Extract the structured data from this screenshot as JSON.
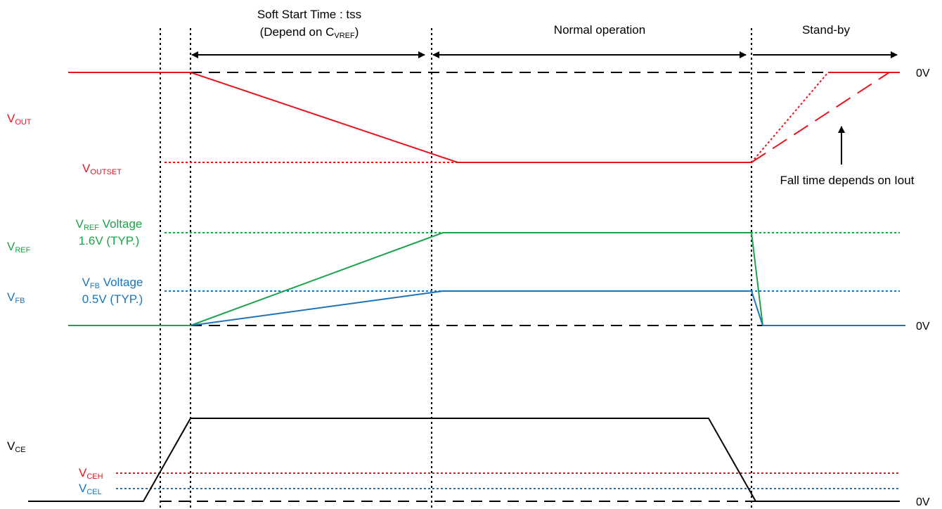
{
  "colors": {
    "vout": "#e8141c",
    "vref": "#1aa34a",
    "vfb": "#1b74bb",
    "vce": "#000000",
    "reference": "#000000"
  },
  "phases": {
    "soft_start": {
      "line1": "Soft Start Time : tss",
      "line2_prefix": "(Depend on C",
      "line2_sub": "VREF",
      "line2_suffix": ")"
    },
    "normal": "Normal operation",
    "standby": "Stand-by"
  },
  "signals": {
    "vout": {
      "main": "V",
      "sub": "OUT"
    },
    "vref": {
      "main": "V",
      "sub": "REF"
    },
    "vfb": {
      "main": "V",
      "sub": "FB"
    },
    "vce": {
      "main": "V",
      "sub": "CE"
    }
  },
  "levels": {
    "voutset": {
      "main": "V",
      "sub": "OUTSET"
    },
    "vref_voltage": {
      "main": "V",
      "sub": "REF",
      "suffix": " Voltage",
      "value": "1.6V (TYP.)"
    },
    "vfb_voltage": {
      "main": "V",
      "sub": "FB",
      "suffix": " Voltage",
      "value": "0.5V (TYP.)"
    },
    "vceh": {
      "main": "V",
      "sub": "CEH"
    },
    "vcel": {
      "main": "V",
      "sub": "CEL"
    }
  },
  "zero_labels": [
    "0V",
    "0V",
    "0V"
  ],
  "annotation": "Fall time depends on Iout"
}
